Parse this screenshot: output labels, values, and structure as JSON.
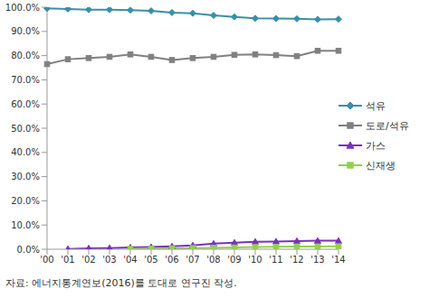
{
  "chart_data": {
    "type": "line",
    "categories": [
      "'00",
      "'01",
      "'02",
      "'03",
      "'04",
      "'05",
      "'06",
      "'07",
      "'08",
      "'09",
      "'10",
      "'11",
      "'12",
      "'13",
      "'14"
    ],
    "series": [
      {
        "name": "석유",
        "color": "#3a8fa8",
        "marker": "diamond",
        "values": [
          99.5,
          99.3,
          99.0,
          99.0,
          98.8,
          98.5,
          97.8,
          97.5,
          96.6,
          96.0,
          95.4,
          95.3,
          95.2,
          95.0,
          95.1
        ]
      },
      {
        "name": "도로/석유",
        "color": "#808080",
        "marker": "square",
        "values": [
          76.5,
          78.5,
          79.0,
          79.5,
          80.5,
          79.5,
          78.2,
          79.0,
          79.5,
          80.3,
          80.5,
          80.2,
          79.8,
          82.0,
          82.0
        ]
      },
      {
        "name": "가스",
        "color": "#7b2fbe",
        "marker": "triangle",
        "values": [
          null,
          0.1,
          0.4,
          0.5,
          0.7,
          0.9,
          1.2,
          1.6,
          2.3,
          2.7,
          3.1,
          3.2,
          3.4,
          3.5,
          3.5
        ]
      },
      {
        "name": "신재생",
        "color": "#92d050",
        "marker": "square",
        "values": [
          null,
          null,
          null,
          null,
          0.2,
          0.3,
          0.4,
          0.5,
          0.6,
          0.7,
          0.9,
          1.0,
          1.1,
          1.1,
          1.2
        ]
      }
    ],
    "ylim": [
      0,
      100
    ],
    "yticks": [
      {
        "value": 0,
        "label": "0.0%"
      },
      {
        "value": 10,
        "label": "10.0%"
      },
      {
        "value": 20,
        "label": "20.0%"
      },
      {
        "value": 30,
        "label": "30.0%"
      },
      {
        "value": 40,
        "label": "40.0%"
      },
      {
        "value": 50,
        "label": "50.0%"
      },
      {
        "value": 60,
        "label": "60.0%"
      },
      {
        "value": 70,
        "label": "70.0%"
      },
      {
        "value": 80,
        "label": "80.0%"
      },
      {
        "value": 90,
        "label": "90.0%"
      },
      {
        "value": 100,
        "label": "100.0%"
      }
    ],
    "grid": false,
    "legend": "right",
    "annotations": [
      "자료: 에너지통계연보(2016)를 토대로 연구진 작성."
    ]
  }
}
